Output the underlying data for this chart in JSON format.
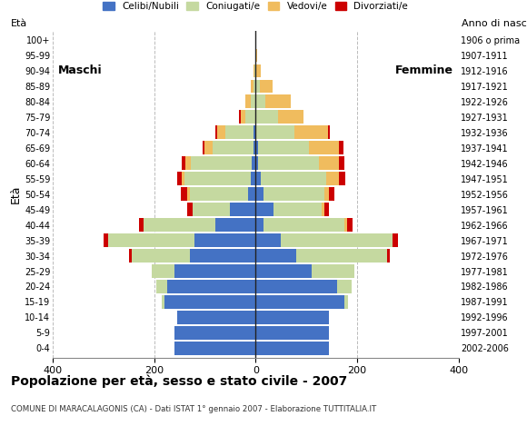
{
  "title": "Popolazione per età, sesso e stato civile - 2007",
  "subtitle": "COMUNE DI MARACALAGONIS (CA) - Dati ISTAT 1° gennaio 2007 - Elaborazione TUTTITALIA.IT",
  "ylabel_left": "Età",
  "ylabel_right": "Anno di nascita",
  "xlim": 400,
  "legend_labels": [
    "Celibi/Nubili",
    "Coniugati/e",
    "Vedovi/e",
    "Divorziati/e"
  ],
  "legend_colors": [
    "#4472c4",
    "#c5d9a0",
    "#f0bc5e",
    "#cc0000"
  ],
  "age_groups": [
    "0-4",
    "5-9",
    "10-14",
    "15-19",
    "20-24",
    "25-29",
    "30-34",
    "35-39",
    "40-44",
    "45-49",
    "50-54",
    "55-59",
    "60-64",
    "65-69",
    "70-74",
    "75-79",
    "80-84",
    "85-89",
    "90-94",
    "95-99",
    "100+"
  ],
  "birth_years": [
    "2002-2006",
    "1997-2001",
    "1992-1996",
    "1987-1991",
    "1982-1986",
    "1977-1981",
    "1972-1976",
    "1967-1971",
    "1962-1966",
    "1957-1961",
    "1952-1956",
    "1947-1951",
    "1942-1946",
    "1937-1941",
    "1932-1936",
    "1927-1931",
    "1922-1926",
    "1917-1921",
    "1912-1916",
    "1907-1911",
    "1906 o prima"
  ],
  "male": {
    "celibi": [
      160,
      160,
      155,
      180,
      175,
      160,
      130,
      120,
      80,
      50,
      15,
      10,
      8,
      5,
      5,
      0,
      0,
      0,
      0,
      0,
      0
    ],
    "coniugati": [
      0,
      0,
      0,
      5,
      20,
      45,
      115,
      170,
      140,
      75,
      115,
      130,
      120,
      80,
      55,
      20,
      10,
      5,
      2,
      1,
      0
    ],
    "vedovi": [
      0,
      0,
      0,
      0,
      0,
      0,
      0,
      0,
      0,
      0,
      5,
      5,
      10,
      15,
      15,
      10,
      10,
      5,
      2,
      0,
      0
    ],
    "divorziati": [
      0,
      0,
      0,
      0,
      0,
      0,
      5,
      10,
      10,
      10,
      12,
      10,
      8,
      5,
      5,
      3,
      0,
      0,
      0,
      0,
      0
    ]
  },
  "female": {
    "nubili": [
      145,
      145,
      145,
      175,
      160,
      110,
      80,
      50,
      15,
      35,
      15,
      10,
      5,
      5,
      2,
      0,
      0,
      0,
      0,
      0,
      0
    ],
    "coniugate": [
      0,
      0,
      0,
      8,
      30,
      85,
      180,
      220,
      160,
      95,
      120,
      130,
      120,
      100,
      75,
      45,
      20,
      8,
      2,
      1,
      0
    ],
    "vedove": [
      0,
      0,
      0,
      0,
      0,
      0,
      0,
      0,
      5,
      5,
      10,
      25,
      40,
      60,
      65,
      50,
      50,
      25,
      8,
      2,
      0
    ],
    "divorziate": [
      0,
      0,
      0,
      0,
      0,
      0,
      5,
      10,
      12,
      10,
      10,
      12,
      10,
      8,
      5,
      0,
      0,
      0,
      0,
      0,
      0
    ]
  },
  "bar_colors": {
    "celibi": "#4472c4",
    "coniugati": "#c5d9a0",
    "vedovi": "#f0bc5e",
    "divorziati": "#cc0000"
  },
  "background_color": "#ffffff",
  "grid_color": "#bbbbbb",
  "bar_height": 0.85
}
